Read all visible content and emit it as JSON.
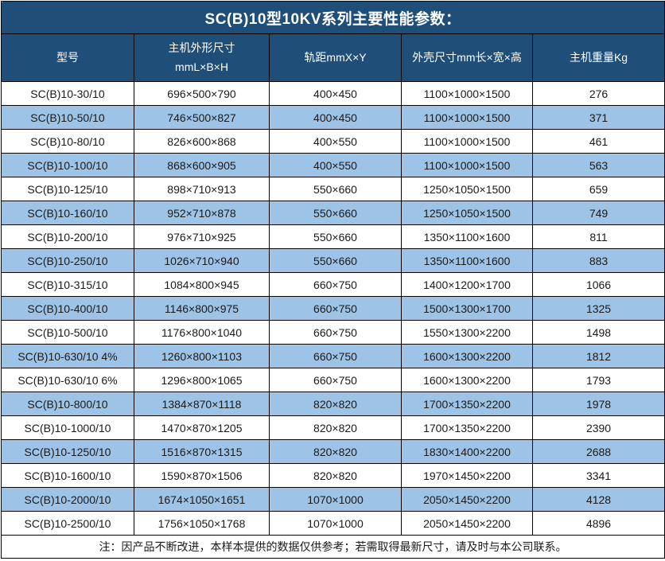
{
  "title": "SC(B)10型10KV系列主要性能参数：",
  "colors": {
    "header_bg": "#1F4E79",
    "stripe_bg": "#9DC3E6",
    "header_text": "#ffffff",
    "body_text": "#1a1a1a",
    "border": "#000000"
  },
  "table": {
    "columns": [
      {
        "line1": "型号",
        "line2": ""
      },
      {
        "line1": "主机外形尺寸",
        "line2": "mmL×B×H"
      },
      {
        "line1": "轨距mmX×Y",
        "line2": ""
      },
      {
        "line1": "外壳尺寸mm长×宽×高",
        "line2": ""
      },
      {
        "line1": "主机重量Kg",
        "line2": ""
      }
    ],
    "rows": [
      [
        "SC(B)10-30/10",
        "696×500×790",
        "400×450",
        "1100×1000×1500",
        "276"
      ],
      [
        "SC(B)10-50/10",
        "746×500×827",
        "400×450",
        "1100×1000×1500",
        "371"
      ],
      [
        "SC(B)10-80/10",
        "826×600×868",
        "400×550",
        "1100×1000×1500",
        "461"
      ],
      [
        "SC(B)10-100/10",
        "868×600×905",
        "400×550",
        "1100×1000×1500",
        "563"
      ],
      [
        "SC(B)10-125/10",
        "898×710×913",
        "550×660",
        "1250×1050×1500",
        "659"
      ],
      [
        "SC(B)10-160/10",
        "952×710×878",
        "550×660",
        "1250×1050×1500",
        "749"
      ],
      [
        "SC(B)10-200/10",
        "976×710×925",
        "550×660",
        "1350×1100×1600",
        "811"
      ],
      [
        "SC(B)10-250/10",
        "1026×710×940",
        "550×660",
        "1350×1100×1600",
        "883"
      ],
      [
        "SC(B)10-315/10",
        "1084×800×945",
        "660×750",
        "1400×1200×1700",
        "1066"
      ],
      [
        "SC(B)10-400/10",
        "1146×800×975",
        "660×750",
        "1500×1300×1700",
        "1325"
      ],
      [
        "SC(B)10-500/10",
        "1176×800×1040",
        "660×750",
        "1550×1300×2200",
        "1498"
      ],
      [
        "SC(B)10-630/10 4%",
        "1260×800×1103",
        "660×750",
        "1600×1300×2200",
        "1812"
      ],
      [
        "SC(B)10-630/10 6%",
        "1296×800×1065",
        "660×750",
        "1600×1300×2200",
        "1793"
      ],
      [
        "SC(B)10-800/10",
        "1384×870×1118",
        "820×820",
        "1700×1350×2200",
        "1978"
      ],
      [
        "SC(B)10-1000/10",
        "1470×870×1205",
        "820×820",
        "1700×1350×2200",
        "2390"
      ],
      [
        "SC(B)10-1250/10",
        "1516×870×1315",
        "820×820",
        "1830×1400×2200",
        "2688"
      ],
      [
        "SC(B)10-1600/10",
        "1590×870×1506",
        "820×820",
        "1970×1450×2200",
        "3341"
      ],
      [
        "SC(B)10-2000/10",
        "1674×1050×1651",
        "1070×1000",
        "2050×1450×2200",
        "4128"
      ],
      [
        "SC(B)10-2500/10",
        "1756×1050×1768",
        "1070×1000",
        "2050×1450×2200",
        "4896"
      ]
    ]
  },
  "note": "注：因产品不断改进，本样本提供的数据仅供参考；若需取得最新尺寸，请及时与本公司联系。"
}
